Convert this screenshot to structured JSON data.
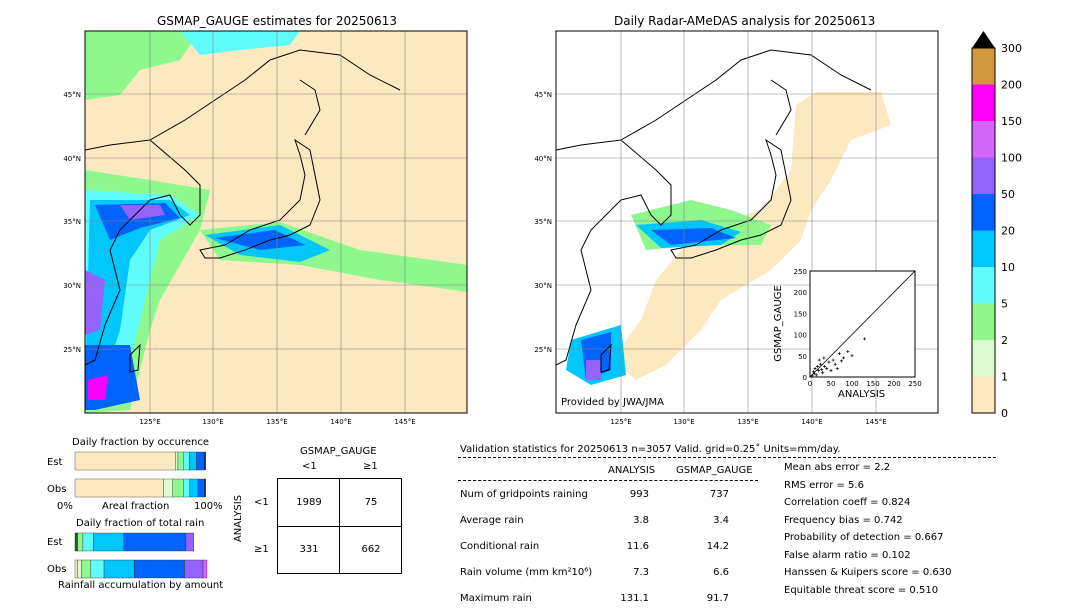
{
  "chart_data": [
    {
      "type": "heatmap",
      "title": "GSMAP_GAUGE estimates for 20250613",
      "lon_ticks": [
        "125°E",
        "130°E",
        "135°E",
        "140°E",
        "145°E"
      ],
      "lat_ticks": [
        "45°N",
        "40°N",
        "35°N",
        "30°N",
        "25°N"
      ]
    },
    {
      "type": "heatmap",
      "title": "Daily Radar-AMeDAS analysis for 20250613",
      "lon_ticks": [
        "125°E",
        "130°E",
        "135°E",
        "140°E",
        "145°E"
      ],
      "lat_ticks": [
        "45°N",
        "40°N",
        "35°N",
        "30°N",
        "25°N"
      ],
      "credit": "Provided by JWA/JMA"
    },
    {
      "type": "scatter",
      "xlabel": "ANALYSIS",
      "ylabel": "GSMAP_GAUGE",
      "xlim": [
        0,
        250
      ],
      "ylim": [
        0,
        250
      ],
      "ticks": [
        "0",
        "50",
        "100",
        "150",
        "200",
        "250"
      ],
      "points": [
        [
          5,
          3
        ],
        [
          10,
          8
        ],
        [
          12,
          20
        ],
        [
          15,
          5
        ],
        [
          20,
          15
        ],
        [
          25,
          30
        ],
        [
          30,
          10
        ],
        [
          35,
          25
        ],
        [
          40,
          20
        ],
        [
          45,
          35
        ],
        [
          50,
          15
        ],
        [
          55,
          40
        ],
        [
          60,
          30
        ],
        [
          70,
          55
        ],
        [
          80,
          45
        ],
        [
          90,
          60
        ],
        [
          100,
          50
        ],
        [
          130,
          90
        ],
        [
          8,
          12
        ],
        [
          18,
          25
        ],
        [
          22,
          40
        ],
        [
          28,
          18
        ],
        [
          33,
          45
        ],
        [
          65,
          20
        ],
        [
          75,
          38
        ]
      ]
    },
    {
      "type": "colorbar",
      "levels": [
        "0",
        "1",
        "2",
        "5",
        "10",
        "20",
        "50",
        "100",
        "150",
        "200",
        "300"
      ],
      "colors": [
        "#fde9bf",
        "#dcfcd0",
        "#8ef88e",
        "#60fcfc",
        "#00c6fc",
        "#0064fc",
        "#9462fc",
        "#d464fc",
        "#fc00fc",
        "#d29a3c"
      ]
    }
  ],
  "fraction_occurrence": {
    "title": "Daily fraction by occurence",
    "est_label": "Est",
    "obs_label": "Obs",
    "axis_left": "0%",
    "axis_mid": "Areal fraction",
    "axis_right": "100%",
    "est": [
      0.76,
      0.02,
      0.04,
      0.045,
      0.055,
      0.06,
      0.01
    ],
    "obs": [
      0.67,
      0.07,
      0.08,
      0.05,
      0.06,
      0.05,
      0.01
    ]
  },
  "fraction_total": {
    "title": "Daily fraction of total rain",
    "est_label": "Est",
    "obs_label": "Obs",
    "xlabel": "Rainfall accumulation by amount",
    "est": [
      0.02,
      0.04,
      0.08,
      0.23,
      0.47,
      0.06
    ],
    "obs": [
      0.02,
      0.03,
      0.07,
      0.1,
      0.23,
      0.38,
      0.14,
      0.03
    ]
  },
  "contingency": {
    "col_title": "GSMAP_GAUGE",
    "row_title": "ANALYSIS",
    "lt": "<1",
    "ge": "≥1",
    "cells": [
      [
        "1989",
        "75"
      ],
      [
        "331",
        "662"
      ]
    ]
  },
  "validation": {
    "header": "Validation statistics for 20250613  n=3057 Valid. grid=0.25˚ Units=mm/day.",
    "col1": "ANALYSIS",
    "col2": "GSMAP_GAUGE",
    "rows": [
      {
        "label": "Num of gridpoints raining",
        "a": "993",
        "g": "737"
      },
      {
        "label": "Average rain",
        "a": "3.8",
        "g": "3.4"
      },
      {
        "label": "Conditional rain",
        "a": "11.6",
        "g": "14.2"
      },
      {
        "label": "Rain volume (mm km²10⁶)",
        "a": "7.3",
        "g": "6.6"
      },
      {
        "label": "Maximum rain",
        "a": "131.1",
        "g": "91.7"
      }
    ],
    "scores": [
      "Mean abs error =    2.2",
      "RMS error =    5.6",
      "Correlation coeff =  0.824",
      "Frequency bias =  0.742",
      "Probability of detection =  0.667",
      "False alarm ratio =  0.102",
      "Hanssen & Kuipers score =  0.630",
      "Equitable threat score =  0.510"
    ]
  }
}
